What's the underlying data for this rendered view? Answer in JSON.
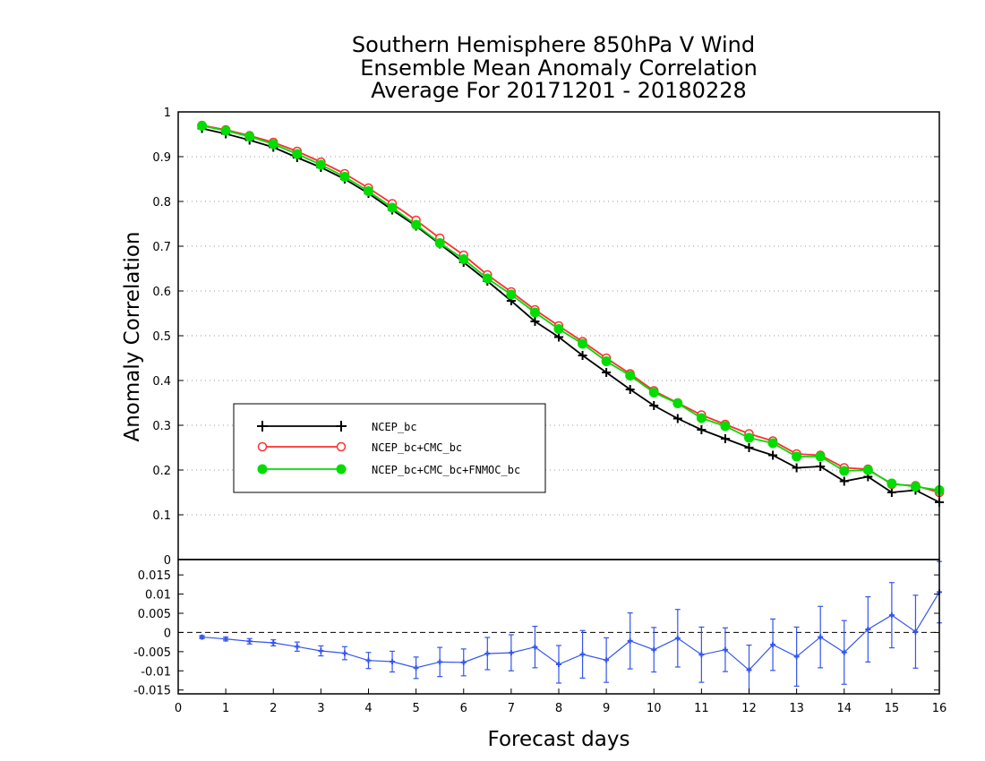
{
  "chart_data": [
    {
      "type": "line",
      "title_lines": [
        "Southern Hemisphere 850hPa V Wind",
        "Ensemble Mean Anomaly Correlation",
        "Average For 20171201 - 20180228"
      ],
      "ylabel": "Anomaly Correlation",
      "xlim": [
        0,
        16
      ],
      "ylim": [
        0,
        1
      ],
      "x_ticks": [
        "0",
        "1",
        "2",
        "3",
        "4",
        "5",
        "6",
        "7",
        "8",
        "9",
        "10",
        "11",
        "12",
        "13",
        "14",
        "15",
        "16"
      ],
      "y_ticks": [
        "0",
        "0.1",
        "0.2",
        "0.3",
        "0.4",
        "0.5",
        "0.6",
        "0.7",
        "0.8",
        "0.9",
        "1"
      ],
      "grid": true,
      "legend_position": "lower-left",
      "x": [
        0.5,
        1,
        1.5,
        2,
        2.5,
        3,
        3.5,
        4,
        4.5,
        5,
        5.5,
        6,
        6.5,
        7,
        7.5,
        8,
        8.5,
        9,
        9.5,
        10,
        10.5,
        11,
        11.5,
        12,
        12.5,
        13,
        13.5,
        14,
        14.5,
        15,
        15.5,
        16
      ],
      "series": [
        {
          "name": "NCEP_bc",
          "color": "#000000",
          "marker": "plus",
          "values": [
            0.963,
            0.951,
            0.937,
            0.921,
            0.898,
            0.876,
            0.85,
            0.818,
            0.781,
            0.745,
            0.705,
            0.664,
            0.622,
            0.578,
            0.532,
            0.497,
            0.456,
            0.418,
            0.38,
            0.344,
            0.315,
            0.29,
            0.27,
            0.25,
            0.233,
            0.205,
            0.208,
            0.175,
            0.185,
            0.15,
            0.155,
            0.128
          ]
        },
        {
          "name": "NCEP_bc+CMC_bc",
          "color": "#ff3030",
          "marker": "open-circle",
          "values": [
            0.97,
            0.96,
            0.947,
            0.932,
            0.912,
            0.888,
            0.862,
            0.83,
            0.795,
            0.758,
            0.718,
            0.68,
            0.636,
            0.598,
            0.558,
            0.522,
            0.487,
            0.45,
            0.415,
            0.377,
            0.35,
            0.323,
            0.302,
            0.281,
            0.265,
            0.236,
            0.233,
            0.205,
            0.202,
            0.168,
            0.165,
            0.15
          ]
        },
        {
          "name": "NCEP_bc+CMC_bc+FNMOC_bc",
          "color": "#00dd00",
          "marker": "filled-circle",
          "values": [
            0.969,
            0.958,
            0.945,
            0.928,
            0.906,
            0.882,
            0.855,
            0.823,
            0.786,
            0.748,
            0.707,
            0.671,
            0.628,
            0.592,
            0.552,
            0.515,
            0.482,
            0.443,
            0.411,
            0.373,
            0.349,
            0.316,
            0.298,
            0.272,
            0.26,
            0.23,
            0.23,
            0.198,
            0.2,
            0.17,
            0.163,
            0.155
          ]
        }
      ]
    },
    {
      "type": "line",
      "xlabel": "Forecast days",
      "xlim": [
        0,
        16
      ],
      "ylim": [
        -0.016,
        0.019
      ],
      "x_ticks": [
        "0",
        "1",
        "2",
        "3",
        "4",
        "5",
        "6",
        "7",
        "8",
        "9",
        "10",
        "11",
        "12",
        "13",
        "14",
        "15",
        "16"
      ],
      "y_ticks": [
        "-0.015",
        "-0.01",
        "-0.005",
        "0",
        "0.005",
        "0.01",
        "0.015"
      ],
      "zero_line": "dashed",
      "x": [
        0.5,
        1,
        1.5,
        2,
        2.5,
        3,
        3.5,
        4,
        4.5,
        5,
        5.5,
        6,
        6.5,
        7,
        7.5,
        8,
        8.5,
        9,
        9.5,
        10,
        10.5,
        11,
        11.5,
        12,
        12.5,
        13,
        13.5,
        14,
        14.5,
        15,
        15.5,
        16
      ],
      "series": [
        {
          "color": "#3355ee",
          "values": [
            -0.0012,
            -0.0017,
            -0.0023,
            -0.0027,
            -0.0037,
            -0.0048,
            -0.0054,
            -0.0073,
            -0.0076,
            -0.0092,
            -0.0077,
            -0.0078,
            -0.0055,
            -0.0053,
            -0.0038,
            -0.0083,
            -0.0057,
            -0.0072,
            -0.0022,
            -0.0045,
            -0.0015,
            -0.0058,
            -0.0045,
            -0.0098,
            -0.0032,
            -0.0063,
            -0.0012,
            -0.0052,
            0.0008,
            0.0045,
            0.0002,
            0.0105
          ],
          "error": [
            0.0004,
            0.0005,
            0.0007,
            0.0008,
            0.0012,
            0.0013,
            0.0017,
            0.0021,
            0.0027,
            0.0028,
            0.0038,
            0.0035,
            0.0042,
            0.0047,
            0.0054,
            0.0049,
            0.0062,
            0.0058,
            0.0073,
            0.0058,
            0.0075,
            0.0072,
            0.0057,
            0.0065,
            0.0067,
            0.0077,
            0.008,
            0.0083,
            0.0085,
            0.0085,
            0.0095,
            0.008
          ]
        }
      ]
    }
  ]
}
